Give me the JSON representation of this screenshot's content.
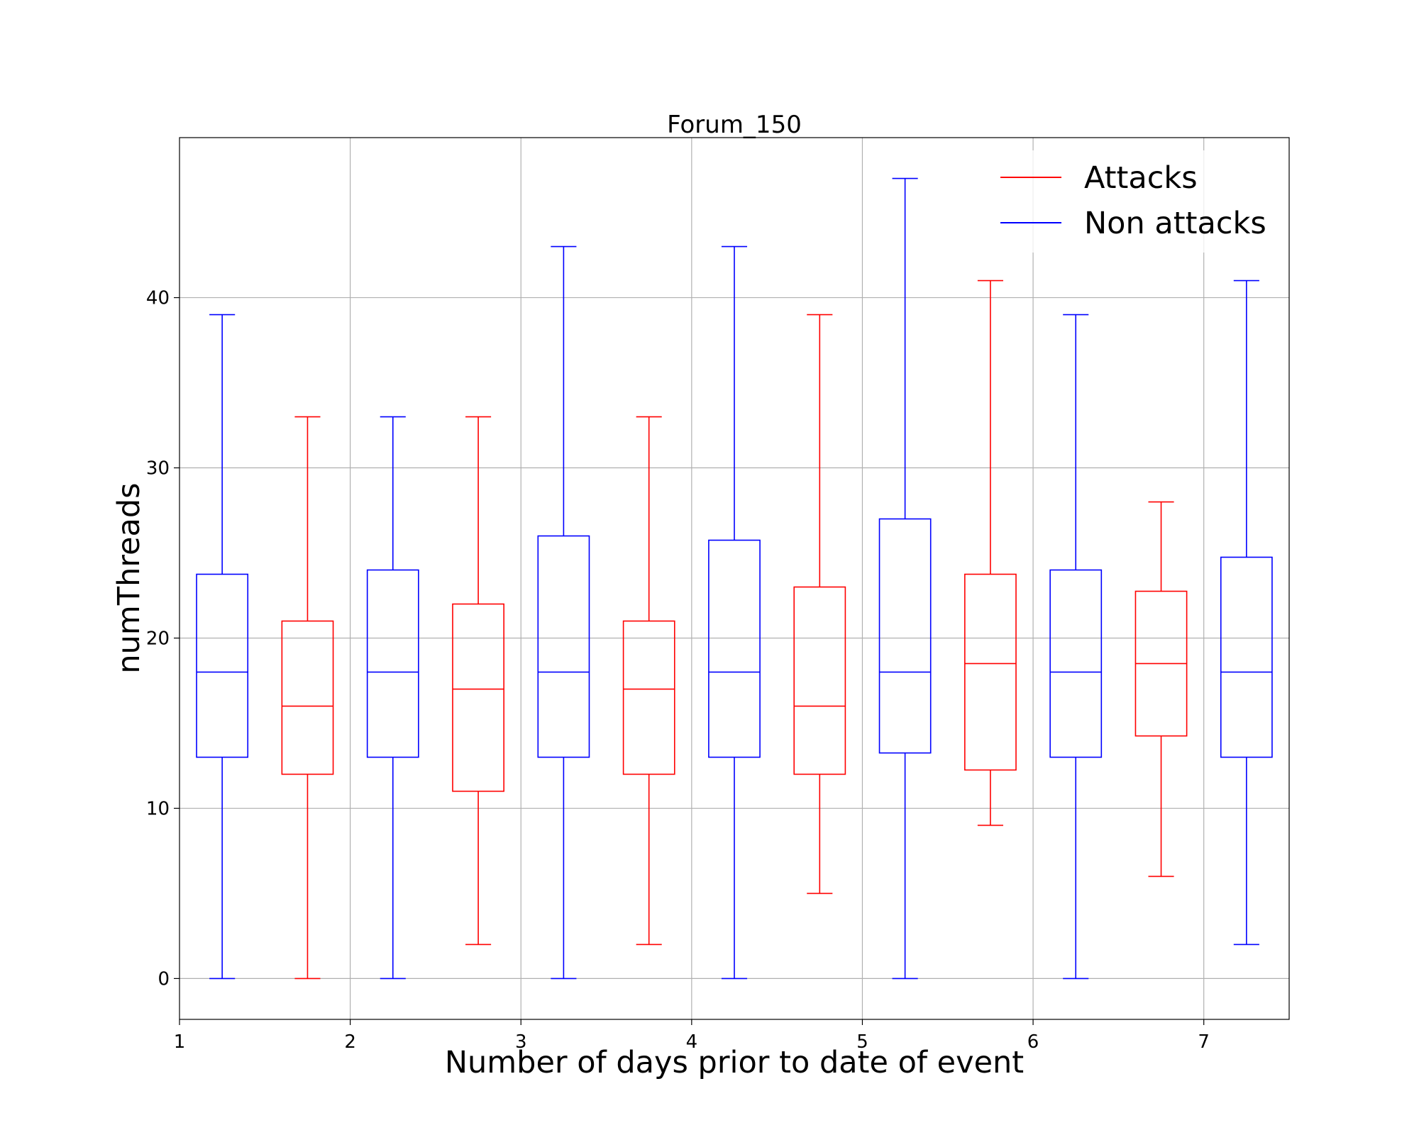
{
  "chart_data": {
    "type": "boxplot",
    "title": "Forum_150",
    "xlabel": "Number of days prior to date of event",
    "ylabel": "numThreads",
    "xlim": [
      1,
      7.5
    ],
    "ylim": [
      -2.4,
      49.4
    ],
    "x_ticks": [
      1,
      2,
      3,
      4,
      5,
      6,
      7
    ],
    "y_ticks": [
      0,
      10,
      20,
      30,
      40
    ],
    "grid": true,
    "legend_position": "top-right",
    "series_colors": {
      "Attacks": "#ff0000",
      "Non attacks": "#0000ff"
    },
    "legend": [
      {
        "label": "Attacks",
        "color": "#ff0000"
      },
      {
        "label": "Non attacks",
        "color": "#0000ff"
      }
    ],
    "box_width": 0.3,
    "boxes": [
      {
        "series": "Non attacks",
        "x": 1.25,
        "whisker_low": 0,
        "q1": 13,
        "median": 18,
        "q3": 23.75,
        "whisker_high": 39
      },
      {
        "series": "Attacks",
        "x": 1.75,
        "whisker_low": 0,
        "q1": 12,
        "median": 16,
        "q3": 21,
        "whisker_high": 33
      },
      {
        "series": "Non attacks",
        "x": 2.25,
        "whisker_low": 0,
        "q1": 13,
        "median": 18,
        "q3": 24,
        "whisker_high": 33
      },
      {
        "series": "Attacks",
        "x": 2.75,
        "whisker_low": 2,
        "q1": 11,
        "median": 17,
        "q3": 22,
        "whisker_high": 33
      },
      {
        "series": "Non attacks",
        "x": 3.25,
        "whisker_low": 0,
        "q1": 13,
        "median": 18,
        "q3": 26,
        "whisker_high": 43
      },
      {
        "series": "Attacks",
        "x": 3.75,
        "whisker_low": 2,
        "q1": 12,
        "median": 17,
        "q3": 21,
        "whisker_high": 33
      },
      {
        "series": "Non attacks",
        "x": 4.25,
        "whisker_low": 0,
        "q1": 13,
        "median": 18,
        "q3": 25.75,
        "whisker_high": 43
      },
      {
        "series": "Attacks",
        "x": 4.75,
        "whisker_low": 5,
        "q1": 12,
        "median": 16,
        "q3": 23,
        "whisker_high": 39
      },
      {
        "series": "Non attacks",
        "x": 5.25,
        "whisker_low": 0,
        "q1": 13.25,
        "median": 18,
        "q3": 27,
        "whisker_high": 47
      },
      {
        "series": "Attacks",
        "x": 5.75,
        "whisker_low": 9,
        "q1": 12.25,
        "median": 18.5,
        "q3": 23.75,
        "whisker_high": 41
      },
      {
        "series": "Non attacks",
        "x": 6.25,
        "whisker_low": 0,
        "q1": 13,
        "median": 18,
        "q3": 24,
        "whisker_high": 39
      },
      {
        "series": "Attacks",
        "x": 6.75,
        "whisker_low": 6,
        "q1": 14.25,
        "median": 18.5,
        "q3": 22.75,
        "whisker_high": 28
      },
      {
        "series": "Non attacks",
        "x": 7.25,
        "whisker_low": 2,
        "q1": 13,
        "median": 18,
        "q3": 24.75,
        "whisker_high": 41
      }
    ]
  }
}
